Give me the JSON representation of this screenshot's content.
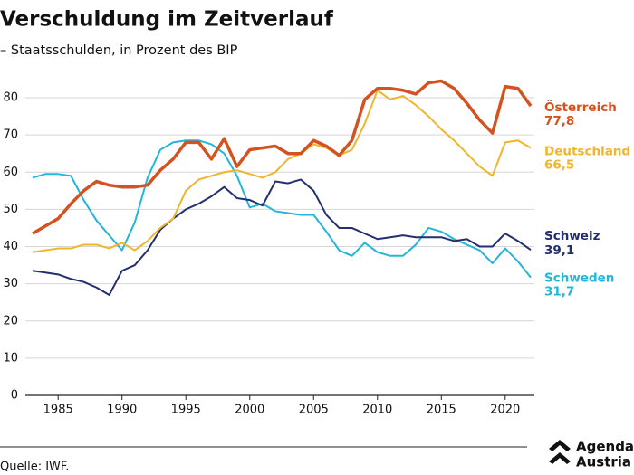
{
  "chart_data": {
    "type": "line",
    "title": "Verschuldung im Zeitverlauf",
    "subtitle": "– Staatsschulden, in Prozent des BIP",
    "source": "Quelle: IWF.",
    "logo": [
      "Agenda",
      "Austria"
    ],
    "x": [
      1983,
      1984,
      1985,
      1986,
      1987,
      1988,
      1989,
      1990,
      1991,
      1992,
      1993,
      1994,
      1995,
      1996,
      1997,
      1998,
      1999,
      2000,
      2001,
      2002,
      2003,
      2004,
      2005,
      2006,
      2007,
      2008,
      2009,
      2010,
      2011,
      2012,
      2013,
      2014,
      2015,
      2016,
      2017,
      2018,
      2019,
      2020,
      2021,
      2022
    ],
    "xlim": [
      1983,
      2022
    ],
    "xticks": [
      1985,
      1990,
      1995,
      2000,
      2005,
      2010,
      2015,
      2020
    ],
    "ylim": [
      0,
      80
    ],
    "yticks": [
      0,
      10,
      20,
      30,
      40,
      50,
      60,
      70,
      80
    ],
    "grid": true,
    "series": [
      {
        "name": "Schweden",
        "color": "#23b5da",
        "values": [
          58.5,
          59.5,
          59.5,
          59,
          52.5,
          47,
          43,
          39,
          46.5,
          58.5,
          66,
          68,
          68.5,
          68.5,
          67.5,
          65,
          59,
          50.5,
          51.5,
          49.5,
          49,
          48.5,
          48.5,
          44,
          39,
          37.5,
          41,
          38.5,
          37.5,
          37.5,
          40.5,
          45,
          44,
          42,
          40.5,
          39,
          35.5,
          39.5,
          36,
          31.7
        ],
        "value_labels": [
          null,
          null,
          null,
          null,
          null,
          null,
          null,
          null,
          null,
          null,
          null,
          null,
          null,
          null,
          null,
          null,
          null,
          null,
          null,
          null,
          null,
          null,
          null,
          null,
          null,
          null,
          null,
          null,
          null,
          null,
          null,
          null,
          null,
          null,
          null,
          null,
          null,
          null,
          null,
          "31,7"
        ]
      },
      {
        "name": "Schweiz",
        "color": "#232f6e",
        "values": [
          33.5,
          33,
          32.5,
          31.3,
          30.5,
          29,
          27,
          33.5,
          35,
          39,
          44.5,
          47.5,
          50,
          51.5,
          53.5,
          56,
          53,
          52.5,
          51,
          57.5,
          57,
          58,
          55,
          48.5,
          45,
          45,
          43.5,
          42,
          42.5,
          43,
          42.5,
          42.5,
          42.5,
          41.5,
          42,
          40,
          40,
          43.5,
          41.5,
          39.1
        ],
        "value_labels": [
          null,
          null,
          null,
          null,
          null,
          null,
          null,
          null,
          null,
          null,
          null,
          null,
          null,
          null,
          null,
          null,
          null,
          null,
          null,
          null,
          null,
          null,
          null,
          null,
          null,
          null,
          null,
          null,
          null,
          null,
          null,
          null,
          null,
          null,
          null,
          null,
          null,
          null,
          null,
          "39,1"
        ]
      },
      {
        "name": "Deutschland",
        "color": "#f0b52b",
        "values": [
          38.5,
          39,
          39.5,
          39.5,
          40.5,
          40.5,
          39.5,
          41,
          39,
          41.5,
          45,
          47.5,
          55,
          58,
          59,
          60,
          60.5,
          59.5,
          58.5,
          60,
          63.5,
          65,
          67.5,
          66.5,
          64.5,
          66,
          73,
          82,
          79.5,
          80.5,
          78,
          75,
          71.5,
          68.5,
          65,
          61.5,
          59,
          68,
          68.5,
          66.5
        ],
        "value_labels": [
          null,
          null,
          null,
          null,
          null,
          null,
          null,
          null,
          null,
          null,
          null,
          null,
          null,
          null,
          null,
          null,
          null,
          null,
          null,
          null,
          null,
          null,
          null,
          null,
          null,
          null,
          null,
          null,
          null,
          null,
          null,
          null,
          null,
          null,
          null,
          null,
          null,
          null,
          null,
          "66,5"
        ]
      },
      {
        "name": "Österreich",
        "color": "#d4521f",
        "values": [
          43.5,
          45.5,
          47.5,
          51.5,
          55,
          57.5,
          56.5,
          56,
          56,
          56.5,
          60.5,
          63.5,
          68,
          68,
          63.5,
          69,
          61.5,
          66,
          66.5,
          67,
          65,
          65,
          68.5,
          67,
          64.5,
          68.5,
          79.5,
          82.5,
          82.5,
          82,
          81,
          84,
          84.5,
          82.5,
          78.5,
          74,
          70.5,
          83,
          82.5,
          77.8
        ],
        "value_labels": [
          null,
          null,
          null,
          null,
          null,
          null,
          null,
          null,
          null,
          null,
          null,
          null,
          null,
          null,
          null,
          null,
          null,
          null,
          null,
          null,
          null,
          null,
          null,
          null,
          null,
          null,
          null,
          null,
          null,
          null,
          null,
          null,
          null,
          null,
          null,
          null,
          null,
          null,
          null,
          "77,8"
        ]
      }
    ]
  }
}
